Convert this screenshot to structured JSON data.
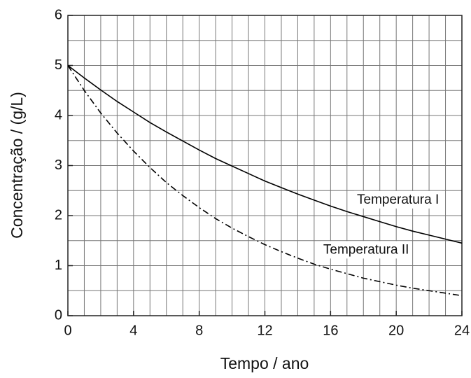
{
  "chart_data": {
    "type": "line",
    "xlabel": "Tempo / ano",
    "ylabel": "Concentração / (g/L)",
    "x": [
      0,
      1,
      2,
      3,
      4,
      5,
      6,
      7,
      8,
      9,
      10,
      11,
      12,
      13,
      14,
      15,
      16,
      17,
      18,
      19,
      20,
      21,
      22,
      23,
      24
    ],
    "series": [
      {
        "name": "Temperatura I",
        "color": "#000000",
        "line_style": "solid",
        "values": [
          5,
          4.75,
          4.51,
          4.28,
          4.07,
          3.86,
          3.67,
          3.49,
          3.31,
          3.14,
          2.99,
          2.84,
          2.69,
          2.56,
          2.43,
          2.31,
          2.19,
          2.08,
          1.98,
          1.88,
          1.78,
          1.69,
          1.61,
          1.53,
          1.45
        ]
      },
      {
        "name": "Temperatura II",
        "color": "#000000",
        "line_style": "dashdot",
        "values": [
          5,
          4.5,
          4.05,
          3.65,
          3.29,
          2.96,
          2.66,
          2.4,
          2.16,
          1.94,
          1.75,
          1.58,
          1.42,
          1.28,
          1.15,
          1.03,
          0.93,
          0.84,
          0.75,
          0.68,
          0.61,
          0.55,
          0.5,
          0.45,
          0.4
        ]
      }
    ],
    "xlim": [
      0,
      24
    ],
    "xticks": [
      0,
      4,
      8,
      12,
      16,
      20,
      24
    ],
    "ylim": [
      0,
      6
    ],
    "yticks": [
      0,
      1,
      2,
      3,
      4,
      5,
      6
    ],
    "grid": true,
    "minor_grid": {
      "x": 1,
      "y": 0.5
    }
  }
}
